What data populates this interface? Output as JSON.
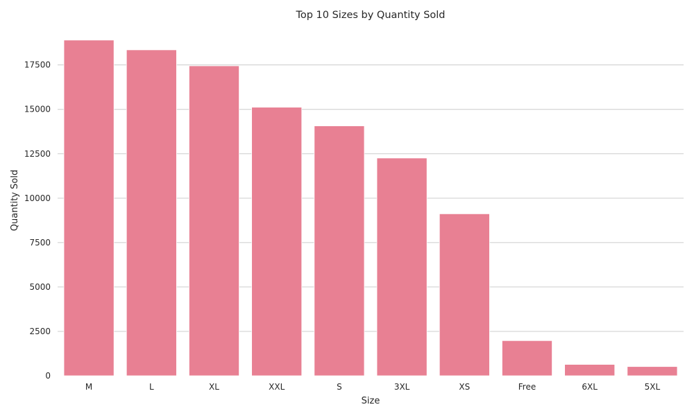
{
  "chart_data": {
    "type": "bar",
    "title": "Top 10 Sizes by Quantity Sold",
    "xlabel": "Size",
    "ylabel": "Quantity Sold",
    "categories": [
      "M",
      "L",
      "XL",
      "XXL",
      "S",
      "3XL",
      "XS",
      "Free",
      "6XL",
      "5XL"
    ],
    "values": [
      18900,
      18350,
      17450,
      15120,
      14070,
      12260,
      9120,
      1980,
      640,
      520
    ],
    "ylim": [
      0,
      19400
    ],
    "yticks": [
      0,
      2500,
      5000,
      7500,
      10000,
      12500,
      15000,
      17500
    ],
    "ytick_labels": [
      "0",
      "2500",
      "5000",
      "7500",
      "10000",
      "12500",
      "15000",
      "17500"
    ],
    "grid": "horizontal",
    "bar_color": "#e88093",
    "grid_color": "#cccccc"
  }
}
